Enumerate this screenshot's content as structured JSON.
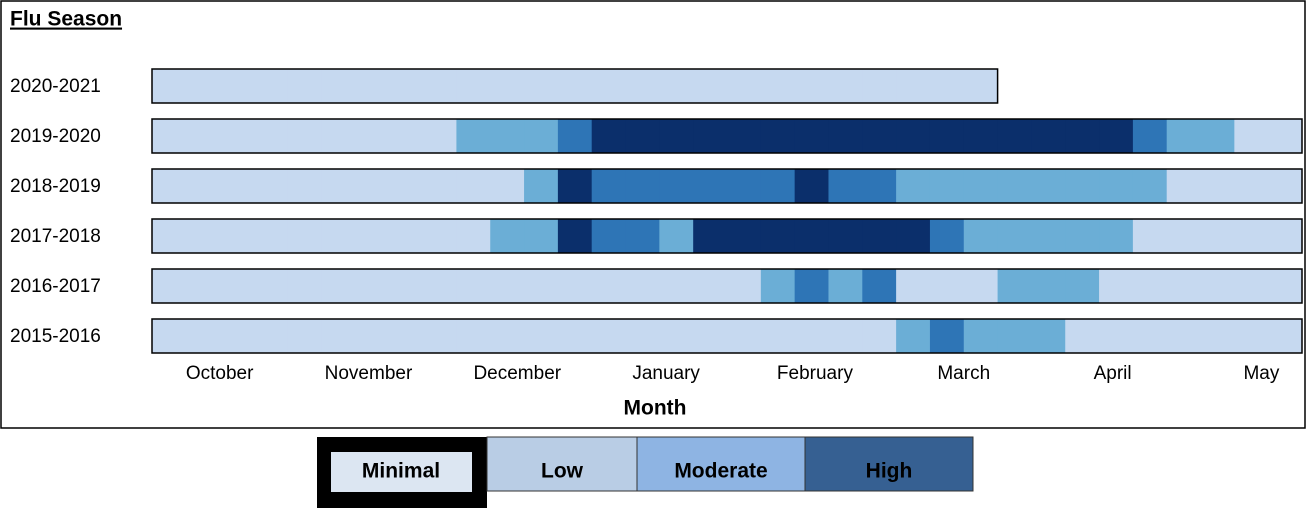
{
  "chart_data": {
    "type": "heatmap",
    "title": "Flu Season",
    "x_label": "Month",
    "months": [
      "October",
      "November",
      "December",
      "January",
      "February",
      "March",
      "April",
      "May"
    ],
    "level_colors": {
      "Minimal": "#c6d9f0",
      "Low": "#6baed6",
      "Moderate": "#2e75b6",
      "High": "#0b2f6b"
    },
    "legend": [
      {
        "name": "Minimal",
        "color": "#dce6f2"
      },
      {
        "name": "Low",
        "color": "#b9cde5"
      },
      {
        "name": "Moderate",
        "color": "#8eb4e3"
      },
      {
        "name": "High",
        "color": "#366092"
      }
    ],
    "series": [
      {
        "name": "2020-2021",
        "values": [
          "Minimal",
          "Minimal",
          "Minimal",
          "Minimal",
          "Minimal",
          "Minimal",
          "Minimal",
          "Minimal",
          "Minimal",
          "Minimal",
          "Minimal",
          "Minimal",
          "Minimal",
          "Minimal",
          "Minimal",
          "Minimal",
          "Minimal",
          "Minimal",
          "Minimal",
          "Minimal",
          "Minimal",
          "Minimal",
          "Minimal",
          "Minimal",
          "Minimal",
          null,
          null,
          null,
          null,
          null,
          null,
          null,
          null,
          null
        ]
      },
      {
        "name": "2019-2020",
        "values": [
          "Minimal",
          "Minimal",
          "Minimal",
          "Minimal",
          "Minimal",
          "Minimal",
          "Minimal",
          "Minimal",
          "Minimal",
          "Low",
          "Low",
          "Low",
          "Moderate",
          "High",
          "High",
          "High",
          "High",
          "High",
          "High",
          "High",
          "High",
          "High",
          "High",
          "High",
          "High",
          "High",
          "High",
          "High",
          "High",
          "Moderate",
          "Low",
          "Low",
          "Minimal",
          "Minimal"
        ]
      },
      {
        "name": "2018-2019",
        "values": [
          "Minimal",
          "Minimal",
          "Minimal",
          "Minimal",
          "Minimal",
          "Minimal",
          "Minimal",
          "Minimal",
          "Minimal",
          "Minimal",
          "Minimal",
          "Low",
          "High",
          "Moderate",
          "Moderate",
          "Moderate",
          "Moderate",
          "Moderate",
          "Moderate",
          "High",
          "Moderate",
          "Moderate",
          "Low",
          "Low",
          "Low",
          "Low",
          "Low",
          "Low",
          "Low",
          "Low",
          "Minimal",
          "Minimal",
          "Minimal",
          "Minimal"
        ]
      },
      {
        "name": "2017-2018",
        "values": [
          "Minimal",
          "Minimal",
          "Minimal",
          "Minimal",
          "Minimal",
          "Minimal",
          "Minimal",
          "Minimal",
          "Minimal",
          "Minimal",
          "Low",
          "Low",
          "High",
          "Moderate",
          "Moderate",
          "Low",
          "High",
          "High",
          "High",
          "High",
          "High",
          "High",
          "High",
          "Moderate",
          "Low",
          "Low",
          "Low",
          "Low",
          "Low",
          "Minimal",
          "Minimal",
          "Minimal",
          "Minimal",
          "Minimal"
        ]
      },
      {
        "name": "2016-2017",
        "values": [
          "Minimal",
          "Minimal",
          "Minimal",
          "Minimal",
          "Minimal",
          "Minimal",
          "Minimal",
          "Minimal",
          "Minimal",
          "Minimal",
          "Minimal",
          "Minimal",
          "Minimal",
          "Minimal",
          "Minimal",
          "Minimal",
          "Minimal",
          "Minimal",
          "Low",
          "Moderate",
          "Low",
          "Moderate",
          "Minimal",
          "Minimal",
          "Minimal",
          "Low",
          "Low",
          "Low",
          "Minimal",
          "Minimal",
          "Minimal",
          "Minimal",
          "Minimal",
          "Minimal"
        ]
      },
      {
        "name": "2015-2016",
        "values": [
          "Minimal",
          "Minimal",
          "Minimal",
          "Minimal",
          "Minimal",
          "Minimal",
          "Minimal",
          "Minimal",
          "Minimal",
          "Minimal",
          "Minimal",
          "Minimal",
          "Minimal",
          "Minimal",
          "Minimal",
          "Minimal",
          "Minimal",
          "Minimal",
          "Minimal",
          "Minimal",
          "Minimal",
          "Minimal",
          "Low",
          "Moderate",
          "Low",
          "Low",
          "Low",
          "Minimal",
          "Minimal",
          "Minimal",
          "Minimal",
          "Minimal",
          "Minimal",
          "Minimal"
        ]
      }
    ]
  }
}
